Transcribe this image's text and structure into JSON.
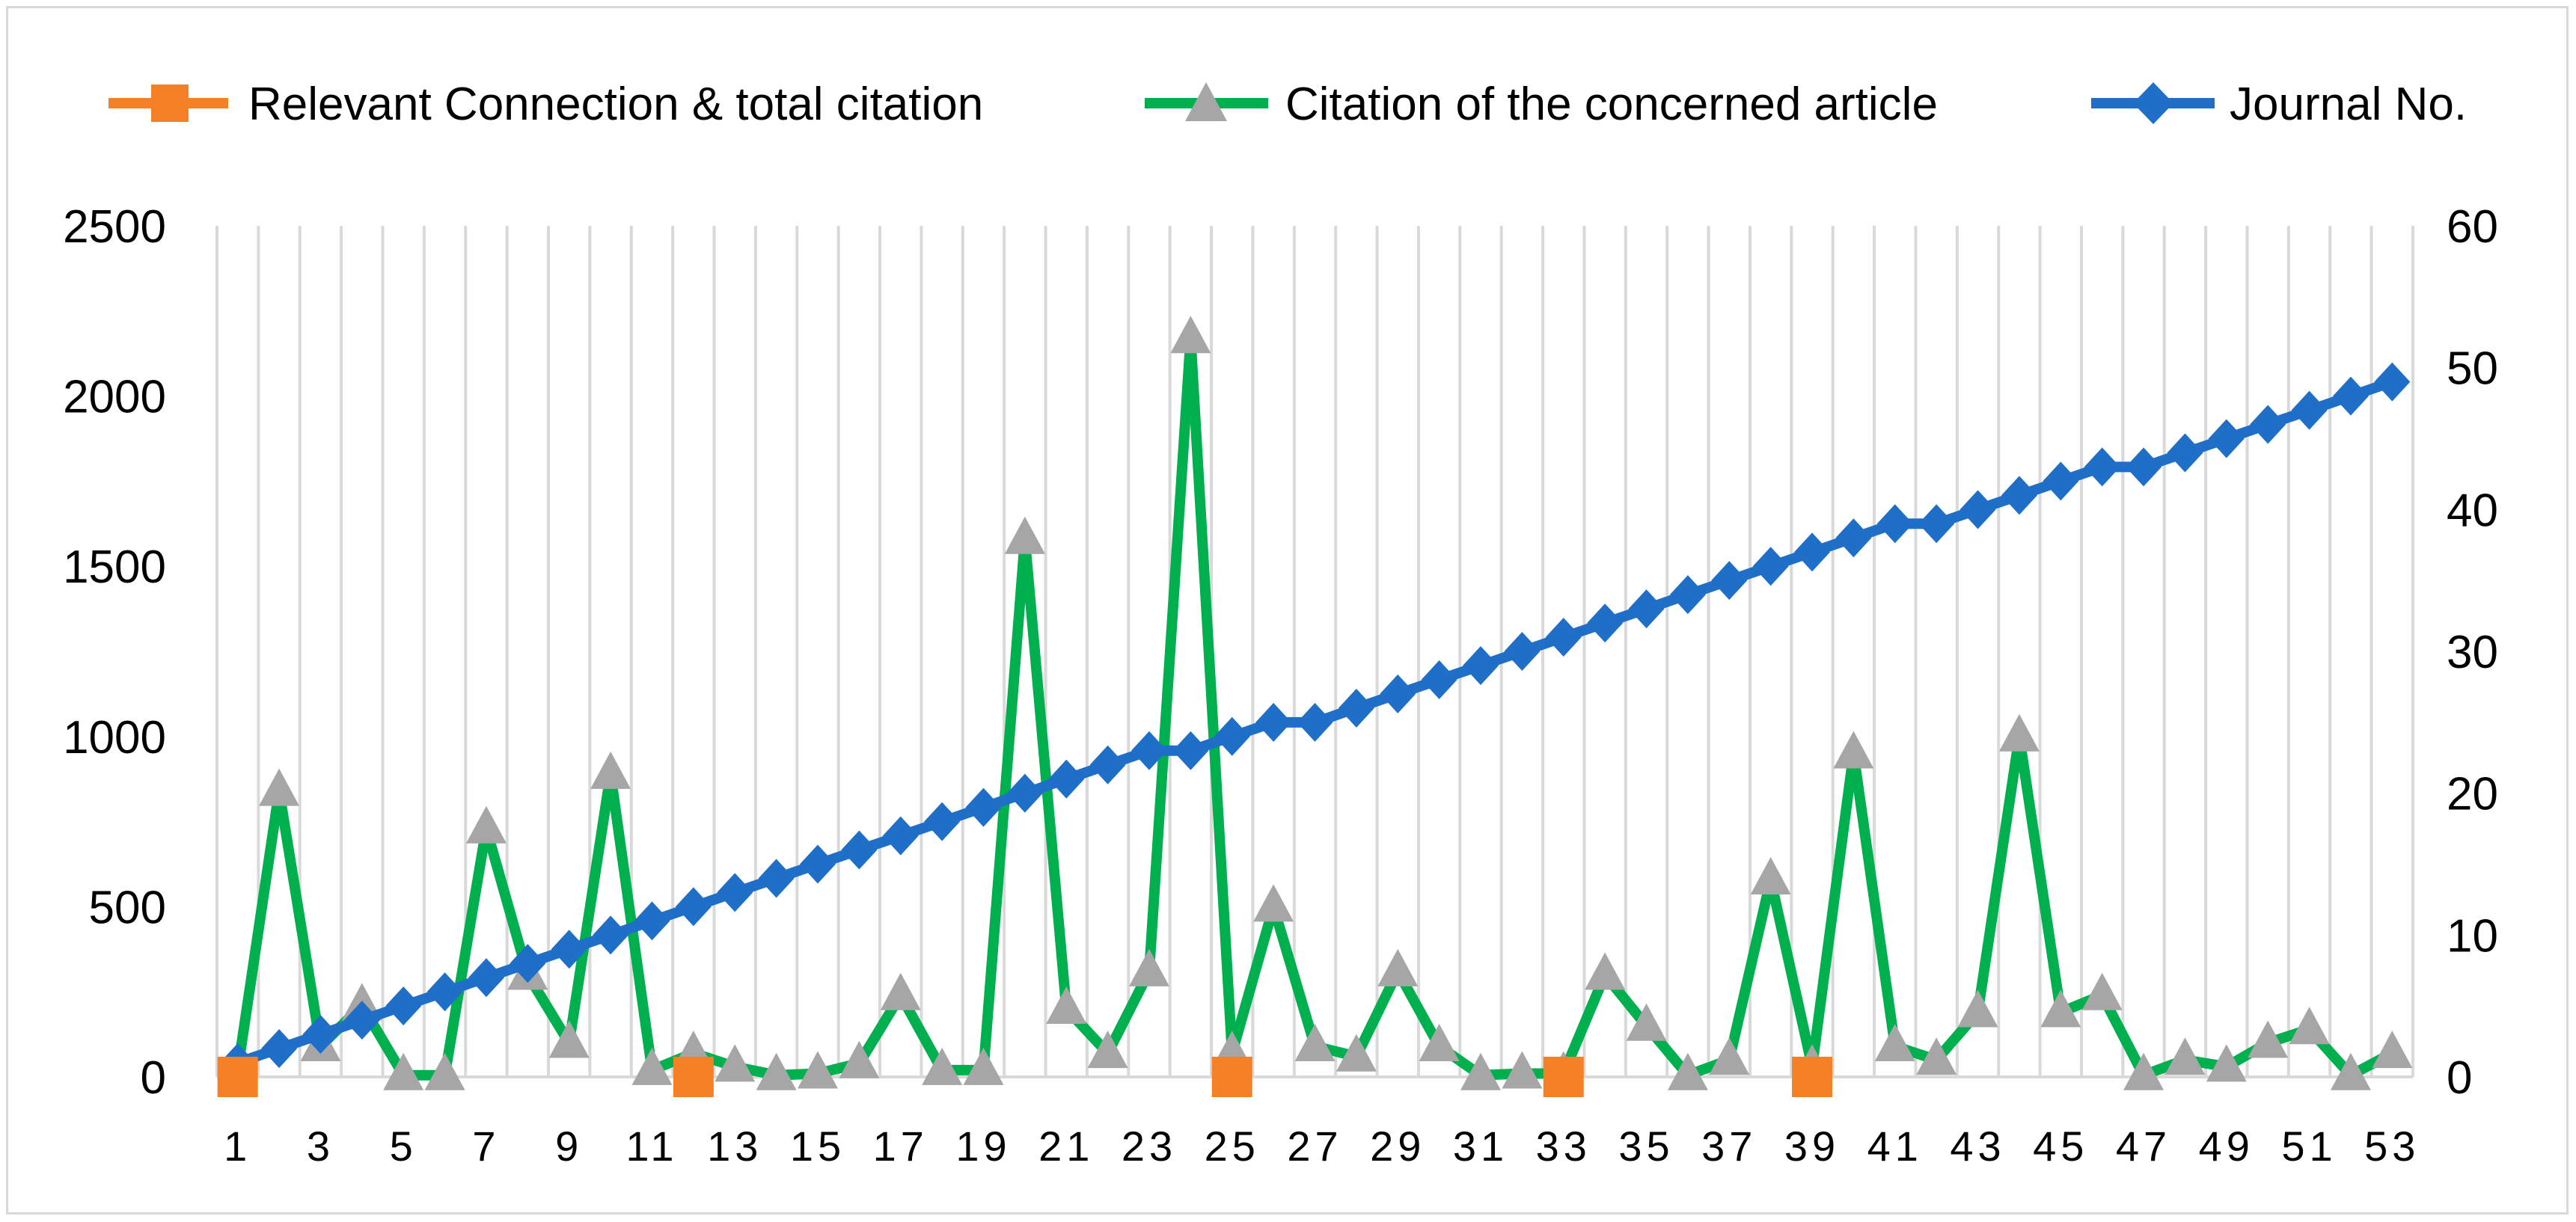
{
  "chart_data": {
    "type": "line",
    "categories": [
      1,
      2,
      3,
      4,
      5,
      6,
      7,
      8,
      9,
      10,
      11,
      12,
      13,
      14,
      15,
      16,
      17,
      18,
      19,
      20,
      21,
      22,
      23,
      24,
      25,
      26,
      27,
      28,
      29,
      30,
      31,
      32,
      33,
      34,
      35,
      36,
      37,
      38,
      39,
      40,
      41,
      42,
      43,
      44,
      45,
      46,
      47,
      48,
      49,
      50,
      51,
      52,
      53
    ],
    "x_tick_labels": [
      "1",
      "3",
      "5",
      "7",
      "9",
      "11",
      "13",
      "15",
      "17",
      "19",
      "21",
      "23",
      "25",
      "27",
      "29",
      "31",
      "33",
      "35",
      "37",
      "39",
      "41",
      "43",
      "45",
      "47",
      "49",
      "51",
      "53"
    ],
    "y_left": {
      "ylim": [
        0,
        2500
      ],
      "ticks": [
        "0",
        "500",
        "1000",
        "1500",
        "2000",
        "2500"
      ]
    },
    "y_right": {
      "ylim": [
        0,
        60
      ],
      "ticks": [
        "0",
        "10",
        "20",
        "30",
        "40",
        "50",
        "60"
      ]
    },
    "grid": "vertical",
    "legend": "top",
    "series": [
      {
        "name": "Relevant Connection & total citation",
        "color": "#f58025",
        "marker": "square",
        "axis": "left",
        "draw_line": false,
        "points": [
          [
            1,
            0
          ],
          [
            12,
            0
          ],
          [
            25,
            0
          ],
          [
            33,
            0
          ],
          [
            39,
            0
          ]
        ]
      },
      {
        "name": "Citation of the concerned article",
        "color": "#00b04f",
        "marker_color": "#a6a6a6",
        "marker": "triangle",
        "axis": "left",
        "values": [
          20,
          840,
          90,
          210,
          5,
          5,
          730,
          300,
          100,
          890,
          20,
          70,
          30,
          5,
          10,
          40,
          240,
          20,
          20,
          1580,
          200,
          70,
          310,
          2170,
          70,
          500,
          90,
          60,
          310,
          90,
          5,
          10,
          10,
          300,
          150,
          5,
          50,
          580,
          30,
          950,
          90,
          50,
          190,
          1000,
          190,
          240,
          5,
          50,
          30,
          100,
          140,
          5,
          70
        ]
      },
      {
        "name": "Journal No.",
        "color": "#1f6fc9",
        "marker": "diamond",
        "axis": "right",
        "values": [
          1,
          2,
          3,
          4,
          5,
          6,
          7,
          8,
          9,
          10,
          11,
          12,
          13,
          14,
          15,
          16,
          17,
          18,
          19,
          20,
          21,
          22,
          23,
          23,
          24,
          25,
          25,
          26,
          27,
          28,
          29,
          30,
          31,
          32,
          33,
          34,
          35,
          36,
          37,
          38,
          39,
          39,
          40,
          41,
          42,
          43,
          43,
          44,
          45,
          46,
          47,
          48,
          49
        ]
      }
    ]
  }
}
